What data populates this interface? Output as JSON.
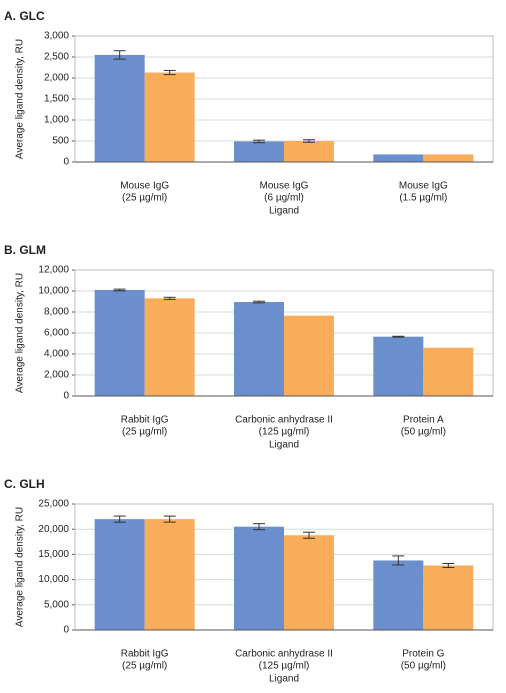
{
  "chart_data": [
    {
      "type": "bar",
      "title": "A. GLC",
      "ylabel": "Average ligand density, RU",
      "xlabel": "Ligand",
      "categories": [
        [
          "Mouse IgG",
          "(25 µg/ml)"
        ],
        [
          "Mouse IgG",
          "(6 µg/ml)"
        ],
        [
          "Mouse IgG",
          "(1.5 µg/ml)"
        ]
      ],
      "series": [
        {
          "color": "#6a8fcc",
          "values": [
            2550,
            490,
            180
          ],
          "errors": [
            100,
            30,
            null
          ]
        },
        {
          "color": "#f9ad5a",
          "values": [
            2130,
            500,
            180
          ],
          "errors": [
            50,
            30,
            null
          ]
        }
      ],
      "ylim": [
        0,
        3000
      ],
      "yticks": [
        0,
        500,
        {
          "value": 1000,
          "label": "1,000"
        },
        {
          "value": 1500,
          "label": "1,500"
        },
        {
          "value": 2000,
          "label": "2,000"
        },
        {
          "value": 2500,
          "label": "2,500"
        },
        {
          "value": 3000,
          "label": "3,000"
        }
      ],
      "grid": true
    },
    {
      "type": "bar",
      "title": "B. GLM",
      "ylabel": "Average ligand density, RU",
      "xlabel": "Ligand",
      "categories": [
        [
          "Rabbit IgG",
          "(25 µg/ml)"
        ],
        [
          "Carbonic anhydrase II",
          "(125 µg/ml)"
        ],
        [
          "Protein A",
          "(50 µg/ml)"
        ]
      ],
      "series": [
        {
          "color": "#6a8fcc",
          "values": [
            10100,
            8950,
            5650
          ],
          "errors": [
            80,
            80,
            40
          ]
        },
        {
          "color": "#f9ad5a",
          "values": [
            9300,
            7650,
            4600
          ],
          "errors": [
            100,
            null,
            null
          ]
        }
      ],
      "ylim": [
        0,
        12000
      ],
      "yticks": [
        0,
        {
          "value": 2000,
          "label": "2,000"
        },
        {
          "value": 4000,
          "label": "4,000"
        },
        {
          "value": 6000,
          "label": "6,000"
        },
        {
          "value": 8000,
          "label": "8,000"
        },
        {
          "value": 10000,
          "label": "10,000"
        },
        {
          "value": 12000,
          "label": "12,000"
        }
      ],
      "grid": true
    },
    {
      "type": "bar",
      "title": "C. GLH",
      "ylabel": "Average ligand density, RU",
      "xlabel": "Ligand",
      "categories": [
        [
          "Rabbit IgG",
          "(25 µg/ml)"
        ],
        [
          "Carbonic anhydrase II",
          "(125 µg/ml)"
        ],
        [
          "Protein G",
          "(50 µg/ml)"
        ]
      ],
      "series": [
        {
          "color": "#6a8fcc",
          "values": [
            22000,
            20500,
            13800
          ],
          "errors": [
            600,
            600,
            900
          ]
        },
        {
          "color": "#f9ad5a",
          "values": [
            22000,
            18800,
            12800
          ],
          "errors": [
            600,
            600,
            400
          ]
        }
      ],
      "ylim": [
        0,
        25000
      ],
      "yticks": [
        0,
        {
          "value": 5000,
          "label": "5,000"
        },
        {
          "value": 10000,
          "label": "10,000"
        },
        {
          "value": 15000,
          "label": "15,000"
        },
        {
          "value": 20000,
          "label": "20,000"
        },
        {
          "value": 25000,
          "label": "25,000"
        }
      ],
      "grid": true
    }
  ]
}
